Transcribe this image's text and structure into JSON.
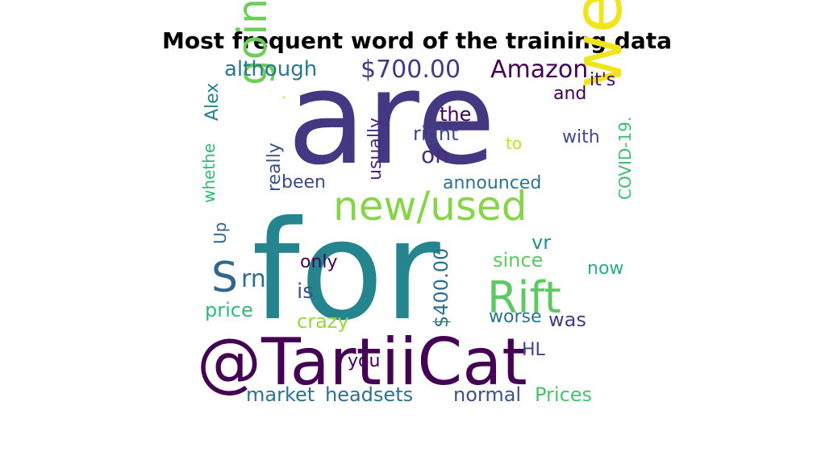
{
  "chart_data": {
    "type": "wordcloud",
    "title": "Most frequent word of the training data",
    "words": [
      {
        "text": "are",
        "color": "#453882"
      },
      {
        "text": "for",
        "color": "#25858e"
      },
      {
        "text": "@TartiiCat",
        "color": "#440154"
      },
      {
        "text": "well",
        "color": "#f0e51c"
      },
      {
        "text": "new/used",
        "color": "#86d549"
      },
      {
        "text": "going",
        "color": "#6ccd5a"
      },
      {
        "text": "Rift",
        "color": "#5ec962"
      },
      {
        "text": "S",
        "color": "#31668e"
      },
      {
        "text": "$700.00",
        "color": "#443983"
      },
      {
        "text": "Amazon",
        "color": "#440154"
      },
      {
        "text": "although",
        "color": "#2a788e"
      },
      {
        "text": "it's",
        "color": "#3b0f70"
      },
      {
        "text": "and",
        "color": "#440154"
      },
      {
        "text": "the",
        "color": "#440154"
      },
      {
        "text": "right",
        "color": "#3e4989"
      },
      {
        "text": "on",
        "color": "#472d7b"
      },
      {
        "text": "usually",
        "color": "#482878"
      },
      {
        "text": "really",
        "color": "#3b528b"
      },
      {
        "text": "whethe",
        "color": "#35b779"
      },
      {
        "text": "Alex",
        "color": "#26828e"
      },
      {
        "text": "to",
        "color": "#bddf26"
      },
      {
        "text": "with",
        "color": "#3e4a89"
      },
      {
        "text": "COVID-19.",
        "color": "#3fbc73"
      },
      {
        "text": "been",
        "color": "#3e4989"
      },
      {
        "text": "announced",
        "color": "#2c728e"
      },
      {
        "text": "Up",
        "color": "#31688e"
      },
      {
        "text": "rn",
        "color": "#2d708e"
      },
      {
        "text": "only",
        "color": "#440154"
      },
      {
        "text": "is",
        "color": "#3b528b"
      },
      {
        "text": "$400.00",
        "color": "#2e6f8e"
      },
      {
        "text": "vr",
        "color": "#20928c"
      },
      {
        "text": "since",
        "color": "#5ec962"
      },
      {
        "text": "now",
        "color": "#26ad81"
      },
      {
        "text": "price",
        "color": "#35b779"
      },
      {
        "text": "crazy",
        "color": "#95d840"
      },
      {
        "text": "worse",
        "color": "#2c718e"
      },
      {
        "text": "was",
        "color": "#443b84"
      },
      {
        "text": "HL",
        "color": "#3f4788"
      },
      {
        "text": "you",
        "color": "#440154"
      },
      {
        "text": "market",
        "color": "#2c728e"
      },
      {
        "text": "headsets",
        "color": "#2d708e"
      },
      {
        "text": "normal",
        "color": "#3b528b"
      },
      {
        "text": "Prices",
        "color": "#4ac16d"
      },
      {
        "text": ".",
        "color": "#b5de2b"
      }
    ]
  }
}
